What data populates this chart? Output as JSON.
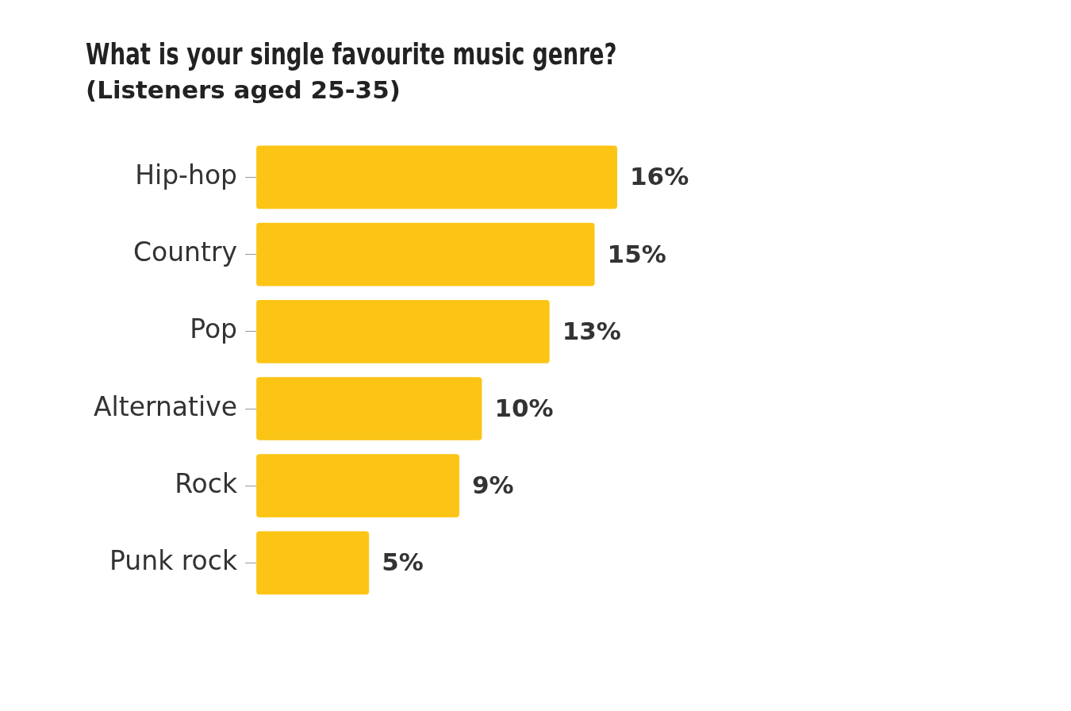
{
  "chart_data": {
    "type": "bar",
    "orientation": "horizontal",
    "title": "What is your single favourite music genre?",
    "subtitle": "(Listeners aged 25-35)",
    "categories": [
      "Hip-hop",
      "Country",
      "Pop",
      "Alternative",
      "Rock",
      "Punk rock"
    ],
    "values": [
      16,
      15,
      13,
      10,
      9,
      5
    ],
    "value_labels": [
      "16%",
      "15%",
      "13%",
      "10%",
      "9%",
      "5%"
    ],
    "color": "#fcc515",
    "grid": false,
    "legend": false,
    "tick_labels": "y"
  }
}
